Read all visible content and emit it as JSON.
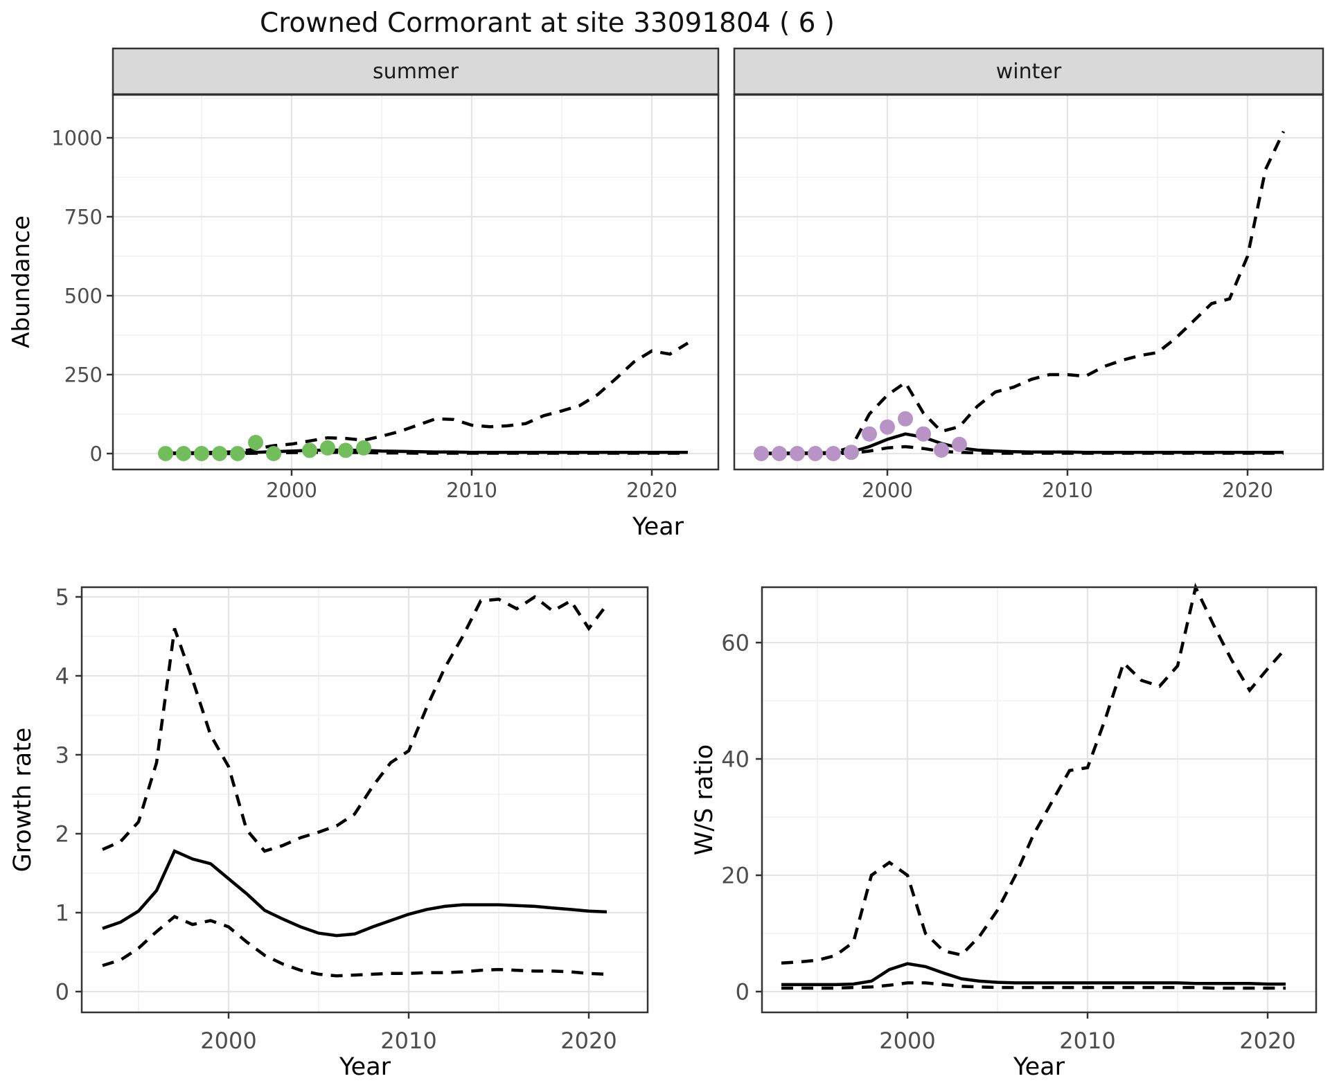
{
  "page": {
    "title": "Crowned Cormorant at site 33091804 ( 6 )"
  },
  "chart_data": [
    {
      "id": "abundance",
      "type": "line",
      "title": "",
      "xlabel": "Year",
      "ylabel": "Abundance",
      "xticks": [
        2000,
        2010,
        2020
      ],
      "yticks": [
        0,
        250,
        500,
        750,
        1000
      ],
      "xlim": [
        1990.5,
        2023.5
      ],
      "ylim": [
        -50,
        1135
      ],
      "grid": "on",
      "legend": "none",
      "years": [
        1993,
        1994,
        1995,
        1996,
        1997,
        1998,
        1999,
        2000,
        2001,
        2002,
        2003,
        2004,
        2005,
        2006,
        2007,
        2008,
        2009,
        2010,
        2011,
        2012,
        2013,
        2014,
        2015,
        2016,
        2017,
        2018,
        2019,
        2020,
        2021,
        2022
      ],
      "facets": [
        {
          "label": "summer",
          "point_color": "#72BE5D",
          "observed": [
            [
              1993,
              0
            ],
            [
              1994,
              0
            ],
            [
              1995,
              0
            ],
            [
              1996,
              0
            ],
            [
              1997,
              0
            ],
            [
              1998,
              35
            ],
            [
              1999,
              0
            ],
            [
              2001,
              10
            ],
            [
              2002,
              18
            ],
            [
              2003,
              10
            ],
            [
              2004,
              18
            ]
          ],
          "fit": [
            1,
            1,
            1,
            2,
            2,
            4,
            6,
            8,
            10,
            11,
            11,
            10,
            8,
            7,
            6,
            5,
            5,
            4,
            4,
            4,
            4,
            4,
            4,
            4,
            4,
            4,
            4,
            4,
            4,
            4
          ],
          "upper_ci": [
            2,
            2,
            3,
            4,
            6,
            15,
            25,
            30,
            40,
            50,
            48,
            42,
            55,
            70,
            90,
            110,
            108,
            90,
            85,
            88,
            95,
            120,
            135,
            152,
            187,
            237,
            290,
            325,
            315,
            350
          ],
          "lower_ci": [
            0,
            0,
            0,
            0,
            0,
            1,
            2,
            3,
            4,
            4,
            4,
            3,
            2,
            2,
            1,
            1,
            1,
            1,
            1,
            1,
            1,
            1,
            1,
            1,
            1,
            1,
            1,
            1,
            1,
            1
          ]
        },
        {
          "label": "winter",
          "point_color": "#B894C6",
          "observed": [
            [
              1993,
              0
            ],
            [
              1994,
              0
            ],
            [
              1995,
              0
            ],
            [
              1996,
              0
            ],
            [
              1997,
              0
            ],
            [
              1998,
              4
            ],
            [
              1999,
              62
            ],
            [
              2000,
              84
            ],
            [
              2001,
              110
            ],
            [
              2002,
              62
            ],
            [
              2003,
              11
            ],
            [
              2004,
              29
            ]
          ],
          "fit": [
            0,
            0,
            0,
            1,
            2,
            5,
            22,
            45,
            62,
            52,
            32,
            18,
            11,
            8,
            6,
            5,
            5,
            5,
            4,
            4,
            4,
            4,
            4,
            4,
            4,
            4,
            4,
            4,
            4,
            4
          ],
          "upper_ci": [
            1,
            1,
            2,
            2,
            3,
            20,
            125,
            185,
            225,
            128,
            70,
            85,
            150,
            195,
            210,
            235,
            250,
            250,
            245,
            275,
            295,
            310,
            320,
            365,
            420,
            475,
            490,
            625,
            900,
            1020
          ],
          "lower_ci": [
            0,
            0,
            0,
            0,
            0,
            1,
            8,
            18,
            22,
            16,
            7,
            4,
            2,
            1,
            1,
            1,
            1,
            1,
            1,
            1,
            1,
            1,
            1,
            1,
            1,
            1,
            1,
            1,
            1,
            1
          ]
        }
      ]
    },
    {
      "id": "growth_rate",
      "type": "line",
      "title": "",
      "xlabel": "Year",
      "ylabel": "Growth rate",
      "xticks": [
        2000,
        2010,
        2020
      ],
      "yticks": [
        0,
        1,
        2,
        3,
        4,
        5
      ],
      "xlim": [
        1991.8,
        2023.3
      ],
      "ylim": [
        -0.2,
        5.2
      ],
      "grid": "on",
      "legend": "none",
      "years": [
        1993,
        1994,
        1995,
        1996,
        1997,
        1998,
        1999,
        2000,
        2001,
        2002,
        2003,
        2004,
        2005,
        2006,
        2007,
        2008,
        2009,
        2010,
        2011,
        2012,
        2013,
        2014,
        2015,
        2016,
        2017,
        2018,
        2019,
        2020,
        2021
      ],
      "fit": [
        0.8,
        0.88,
        1.02,
        1.28,
        1.78,
        1.68,
        1.62,
        1.43,
        1.24,
        1.03,
        0.92,
        0.82,
        0.74,
        0.71,
        0.73,
        0.82,
        0.9,
        0.98,
        1.04,
        1.08,
        1.1,
        1.1,
        1.1,
        1.09,
        1.08,
        1.06,
        1.04,
        1.02,
        1.01
      ],
      "upper_ci": [
        1.8,
        1.9,
        2.15,
        2.9,
        4.6,
        3.95,
        3.25,
        2.85,
        2.05,
        1.78,
        1.85,
        1.95,
        2.02,
        2.1,
        2.25,
        2.6,
        2.9,
        3.05,
        3.6,
        4.1,
        4.5,
        4.95,
        4.97,
        4.85,
        5.0,
        4.82,
        4.95,
        4.6,
        4.9
      ],
      "lower_ci": [
        0.33,
        0.4,
        0.55,
        0.76,
        0.95,
        0.85,
        0.9,
        0.82,
        0.63,
        0.46,
        0.35,
        0.27,
        0.22,
        0.2,
        0.21,
        0.22,
        0.23,
        0.23,
        0.24,
        0.24,
        0.25,
        0.27,
        0.28,
        0.27,
        0.26,
        0.26,
        0.25,
        0.23,
        0.22
      ]
    },
    {
      "id": "ws_ratio",
      "type": "line",
      "title": "",
      "xlabel": "Year",
      "ylabel": "W/S ratio",
      "xticks": [
        2000,
        2010,
        2020
      ],
      "yticks": [
        0,
        20,
        40,
        60
      ],
      "xlim": [
        1991.9,
        2022.7
      ],
      "ylim": [
        -3.5,
        70
      ],
      "grid": "on",
      "legend": "none",
      "years": [
        1993,
        1994,
        1995,
        1996,
        1997,
        1998,
        1999,
        2000,
        2001,
        2002,
        2003,
        2004,
        2005,
        2006,
        2007,
        2008,
        2009,
        2010,
        2011,
        2012,
        2013,
        2014,
        2015,
        2016,
        2017,
        2018,
        2019,
        2020,
        2021
      ],
      "fit": [
        1.2,
        1.2,
        1.2,
        1.2,
        1.3,
        1.8,
        3.8,
        4.8,
        4.3,
        3.2,
        2.2,
        1.8,
        1.6,
        1.5,
        1.5,
        1.5,
        1.5,
        1.5,
        1.5,
        1.5,
        1.5,
        1.5,
        1.5,
        1.4,
        1.4,
        1.4,
        1.4,
        1.3,
        1.3
      ],
      "upper_ci": [
        4.9,
        5.1,
        5.4,
        6.2,
        8.5,
        20.0,
        22.2,
        20.0,
        10.0,
        7.0,
        6.3,
        9.5,
        14.0,
        20.0,
        27.0,
        32.5,
        38.0,
        38.5,
        47.0,
        56.5,
        53.5,
        52.5,
        56.0,
        69.5,
        63.0,
        57.0,
        51.8,
        55.5,
        59.0
      ],
      "lower_ci": [
        0.6,
        0.6,
        0.6,
        0.6,
        0.7,
        0.8,
        1.1,
        1.5,
        1.5,
        1.2,
        0.9,
        0.8,
        0.7,
        0.7,
        0.7,
        0.7,
        0.7,
        0.7,
        0.7,
        0.7,
        0.7,
        0.7,
        0.7,
        0.7,
        0.6,
        0.6,
        0.6,
        0.6,
        0.6
      ]
    }
  ]
}
